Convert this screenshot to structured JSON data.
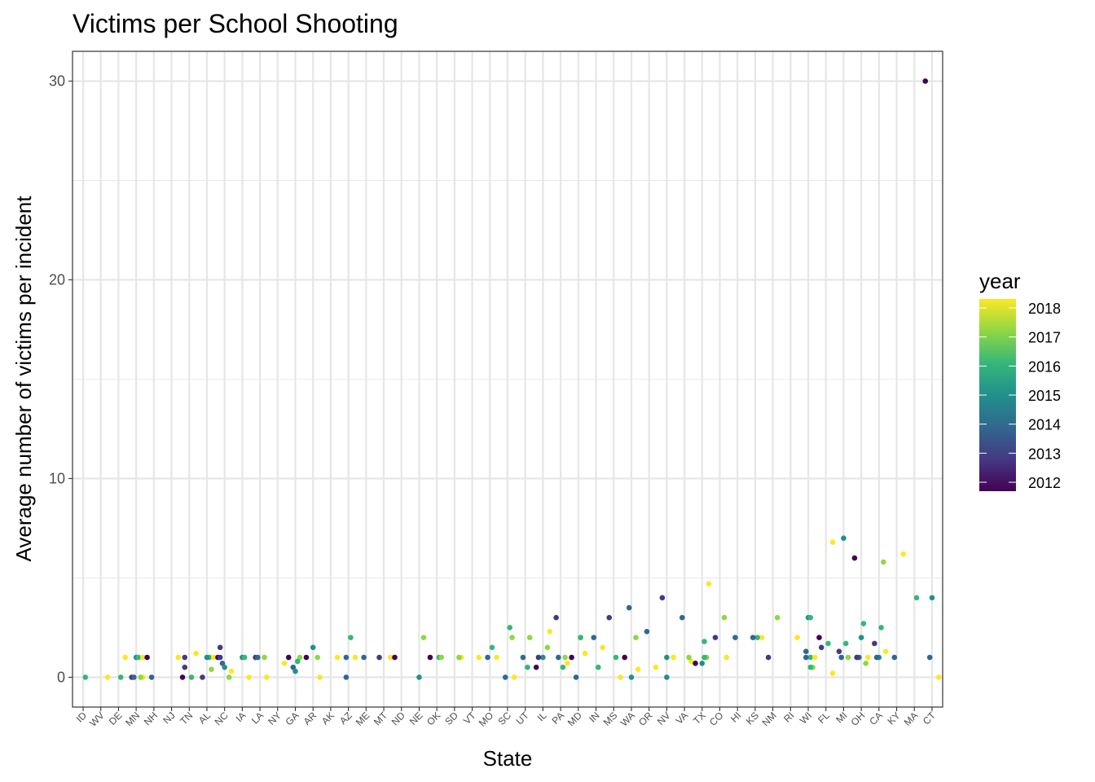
{
  "chart_data": {
    "type": "scatter",
    "title": "Victims per School Shooting",
    "xlabel": "State",
    "ylabel": "Average number of victims per incident",
    "ylim": [
      -1.5,
      31.5
    ],
    "yticks": [
      0,
      10,
      20,
      30
    ],
    "grid": true,
    "categories": [
      "ID",
      "WV",
      "DE",
      "MN",
      "NH",
      "NJ",
      "TN",
      "AL",
      "NC",
      "IA",
      "LA",
      "NY",
      "GA",
      "AR",
      "AK",
      "AZ",
      "ME",
      "MT",
      "ND",
      "NE",
      "OK",
      "SD",
      "VT",
      "MO",
      "SC",
      "UT",
      "IL",
      "PA",
      "MD",
      "IN",
      "MS",
      "WA",
      "OR",
      "NV",
      "VA",
      "TX",
      "CO",
      "HI",
      "KS",
      "NM",
      "RI",
      "WI",
      "FL",
      "MI",
      "OH",
      "CA",
      "KY",
      "MA",
      "CT"
    ],
    "color_scale": {
      "name": "year",
      "min": 2012,
      "max": 2018,
      "ticks": [
        2018,
        2017,
        2016,
        2015,
        2014,
        2013,
        2012
      ],
      "palette": [
        "#440154",
        "#443983",
        "#31688E",
        "#21908C",
        "#35B779",
        "#8FD744",
        "#FDE725"
      ]
    },
    "points": [
      {
        "state": "ID",
        "y": 0,
        "year": 2016
      },
      {
        "state": "WV",
        "y": 0,
        "year": 2018
      },
      {
        "state": "DE",
        "y": 1,
        "year": 2018
      },
      {
        "state": "DE",
        "y": 0,
        "year": 2016
      },
      {
        "state": "MN",
        "y": 0,
        "year": 2018
      },
      {
        "state": "MN",
        "y": 0,
        "year": 2017
      },
      {
        "state": "MN",
        "y": 1,
        "year": 2015
      },
      {
        "state": "MN",
        "y": 1,
        "year": 2016
      },
      {
        "state": "MN",
        "y": 0,
        "year": 2013
      },
      {
        "state": "MN",
        "y": 1,
        "year": 2018
      },
      {
        "state": "MN",
        "y": 0,
        "year": 2014
      },
      {
        "state": "NH",
        "y": 1,
        "year": 2012
      },
      {
        "state": "NH",
        "y": 0,
        "year": 2014
      },
      {
        "state": "NJ",
        "y": 1,
        "year": 2018
      },
      {
        "state": "TN",
        "y": 0,
        "year": 2012
      },
      {
        "state": "TN",
        "y": 0,
        "year": 2016
      },
      {
        "state": "TN",
        "y": 1.2,
        "year": 2018
      },
      {
        "state": "TN",
        "y": 1,
        "year": 2013
      },
      {
        "state": "TN",
        "y": 0.5,
        "year": 2013
      },
      {
        "state": "AL",
        "y": 1,
        "year": 2016
      },
      {
        "state": "AL",
        "y": 1,
        "year": 2015
      },
      {
        "state": "AL",
        "y": 0.4,
        "year": 2017
      },
      {
        "state": "AL",
        "y": 1,
        "year": 2018
      },
      {
        "state": "AL",
        "y": 0,
        "year": 2013
      },
      {
        "state": "NC",
        "y": 1.5,
        "year": 2013
      },
      {
        "state": "NC",
        "y": 0.7,
        "year": 2014
      },
      {
        "state": "NC",
        "y": 0.5,
        "year": 2015
      },
      {
        "state": "NC",
        "y": 0.3,
        "year": 2018
      },
      {
        "state": "NC",
        "y": 0,
        "year": 2017
      },
      {
        "state": "NC",
        "y": 1,
        "year": 2012
      },
      {
        "state": "NC",
        "y": 1,
        "year": 2013
      },
      {
        "state": "IA",
        "y": 0,
        "year": 2018
      },
      {
        "state": "IA",
        "y": 1,
        "year": 2015
      },
      {
        "state": "IA",
        "y": 1,
        "year": 2016
      },
      {
        "state": "LA",
        "y": 1,
        "year": 2013
      },
      {
        "state": "LA",
        "y": 1,
        "year": 2014
      },
      {
        "state": "LA",
        "y": 1,
        "year": 2017
      },
      {
        "state": "LA",
        "y": 0,
        "year": 2018
      },
      {
        "state": "NY",
        "y": 0.7,
        "year": 2018
      },
      {
        "state": "GA",
        "y": 1,
        "year": 2017
      },
      {
        "state": "GA",
        "y": 0.8,
        "year": 2016
      },
      {
        "state": "GA",
        "y": 0.5,
        "year": 2014
      },
      {
        "state": "GA",
        "y": 0.3,
        "year": 2015
      },
      {
        "state": "GA",
        "y": 1,
        "year": 2012
      },
      {
        "state": "AR",
        "y": 0,
        "year": 2018
      },
      {
        "state": "AR",
        "y": 1,
        "year": 2012
      },
      {
        "state": "AR",
        "y": 1.5,
        "year": 2015
      },
      {
        "state": "AR",
        "y": 1,
        "year": 2017
      },
      {
        "state": "AK",
        "y": 1,
        "year": 2018
      },
      {
        "state": "AZ",
        "y": 1,
        "year": 2014
      },
      {
        "state": "AZ",
        "y": 1,
        "year": 2018
      },
      {
        "state": "AZ",
        "y": 2,
        "year": 2016
      },
      {
        "state": "AZ",
        "y": 0,
        "year": 2014
      },
      {
        "state": "ME",
        "y": 1,
        "year": 2014
      },
      {
        "state": "MT",
        "y": 1,
        "year": 2013
      },
      {
        "state": "MT",
        "y": 1,
        "year": 2018
      },
      {
        "state": "ND",
        "y": 1,
        "year": 2012
      },
      {
        "state": "NE",
        "y": 2,
        "year": 2017
      },
      {
        "state": "NE",
        "y": 0,
        "year": 2015
      },
      {
        "state": "OK",
        "y": 1,
        "year": 2012
      },
      {
        "state": "OK",
        "y": 1,
        "year": 2016
      },
      {
        "state": "OK",
        "y": 1,
        "year": 2017
      },
      {
        "state": "SD",
        "y": 1,
        "year": 2018
      },
      {
        "state": "SD",
        "y": 1,
        "year": 2017
      },
      {
        "state": "VT",
        "y": 1,
        "year": 2018
      },
      {
        "state": "MO",
        "y": 1,
        "year": 2014
      },
      {
        "state": "MO",
        "y": 1.5,
        "year": 2016
      },
      {
        "state": "MO",
        "y": 1,
        "year": 2018
      },
      {
        "state": "SC",
        "y": 0,
        "year": 2014
      },
      {
        "state": "SC",
        "y": 0,
        "year": 2018
      },
      {
        "state": "SC",
        "y": 2,
        "year": 2017
      },
      {
        "state": "SC",
        "y": 2.5,
        "year": 2016
      },
      {
        "state": "UT",
        "y": 0.5,
        "year": 2016
      },
      {
        "state": "UT",
        "y": 2,
        "year": 2017
      },
      {
        "state": "UT",
        "y": 1,
        "year": 2014
      },
      {
        "state": "IL",
        "y": 1,
        "year": 2015
      },
      {
        "state": "IL",
        "y": 2.3,
        "year": 2018
      },
      {
        "state": "IL",
        "y": 1.5,
        "year": 2017
      },
      {
        "state": "IL",
        "y": 0.5,
        "year": 2012
      },
      {
        "state": "IL",
        "y": 1,
        "year": 2013
      },
      {
        "state": "PA",
        "y": 0.5,
        "year": 2016
      },
      {
        "state": "PA",
        "y": 1,
        "year": 2017
      },
      {
        "state": "PA",
        "y": 1,
        "year": 2014
      },
      {
        "state": "PA",
        "y": 3,
        "year": 2013
      },
      {
        "state": "PA",
        "y": 0.7,
        "year": 2018
      },
      {
        "state": "MD",
        "y": 0,
        "year": 2014
      },
      {
        "state": "MD",
        "y": 1,
        "year": 2012
      },
      {
        "state": "MD",
        "y": 2,
        "year": 2016
      },
      {
        "state": "MD",
        "y": 1.2,
        "year": 2018
      },
      {
        "state": "MD",
        "y": 2,
        "year": 2016
      },
      {
        "state": "IN",
        "y": 0.5,
        "year": 2016
      },
      {
        "state": "IN",
        "y": 1.5,
        "year": 2018
      },
      {
        "state": "IN",
        "y": 2,
        "year": 2014
      },
      {
        "state": "MS",
        "y": 3,
        "year": 2013
      },
      {
        "state": "MS",
        "y": 1,
        "year": 2016
      },
      {
        "state": "MS",
        "y": 0,
        "year": 2018
      },
      {
        "state": "WA",
        "y": 0,
        "year": 2015
      },
      {
        "state": "WA",
        "y": 0.4,
        "year": 2018
      },
      {
        "state": "WA",
        "y": 2,
        "year": 2017
      },
      {
        "state": "WA",
        "y": 3.5,
        "year": 2014
      },
      {
        "state": "WA",
        "y": 1,
        "year": 2012
      },
      {
        "state": "OR",
        "y": 2.3,
        "year": 2014
      },
      {
        "state": "OR",
        "y": 0.5,
        "year": 2018
      },
      {
        "state": "NV",
        "y": 0,
        "year": 2015
      },
      {
        "state": "NV",
        "y": 1,
        "year": 2018
      },
      {
        "state": "NV",
        "y": 4,
        "year": 2013
      },
      {
        "state": "NV",
        "y": 1,
        "year": 2015
      },
      {
        "state": "VA",
        "y": 3,
        "year": 2014
      },
      {
        "state": "VA",
        "y": 0.8,
        "year": 2018
      },
      {
        "state": "VA",
        "y": 1,
        "year": 2017
      },
      {
        "state": "TX",
        "y": 1.8,
        "year": 2016
      },
      {
        "state": "TX",
        "y": 4.7,
        "year": 2018
      },
      {
        "state": "TX",
        "y": 0.7,
        "year": 2012
      },
      {
        "state": "TX",
        "y": 1,
        "year": 2017
      },
      {
        "state": "TX",
        "y": 0.7,
        "year": 2015
      },
      {
        "state": "TX",
        "y": 1,
        "year": 2016
      },
      {
        "state": "CO",
        "y": 3,
        "year": 2017
      },
      {
        "state": "CO",
        "y": 2,
        "year": 2013
      },
      {
        "state": "CO",
        "y": 1,
        "year": 2018
      },
      {
        "state": "HI",
        "y": 2,
        "year": 2014
      },
      {
        "state": "KS",
        "y": 2,
        "year": 2018
      },
      {
        "state": "KS",
        "y": 2,
        "year": 2016
      },
      {
        "state": "KS",
        "y": 2,
        "year": 2014
      },
      {
        "state": "NM",
        "y": 1,
        "year": 2013
      },
      {
        "state": "NM",
        "y": 3,
        "year": 2017
      },
      {
        "state": "RI",
        "y": 2,
        "year": 2018
      },
      {
        "state": "WI",
        "y": 3,
        "year": 2015
      },
      {
        "state": "WI",
        "y": 3,
        "year": 2016
      },
      {
        "state": "WI",
        "y": 1,
        "year": 2016
      },
      {
        "state": "WI",
        "y": 1,
        "year": 2014
      },
      {
        "state": "WI",
        "y": 1,
        "year": 2018
      },
      {
        "state": "WI",
        "y": 0.5,
        "year": 2017
      },
      {
        "state": "WI",
        "y": 0.5,
        "year": 2016
      },
      {
        "state": "WI",
        "y": 1.3,
        "year": 2014
      },
      {
        "state": "FL",
        "y": 6.8,
        "year": 2018
      },
      {
        "state": "FL",
        "y": 2,
        "year": 2012
      },
      {
        "state": "FL",
        "y": 1.5,
        "year": 2013
      },
      {
        "state": "FL",
        "y": 1.7,
        "year": 2016
      },
      {
        "state": "FL",
        "y": 0.2,
        "year": 2018
      },
      {
        "state": "MI",
        "y": 7,
        "year": 2015
      },
      {
        "state": "MI",
        "y": 1,
        "year": 2017
      },
      {
        "state": "MI",
        "y": 1.7,
        "year": 2016
      },
      {
        "state": "MI",
        "y": 1,
        "year": 2014
      },
      {
        "state": "MI",
        "y": 1.3,
        "year": 2013
      },
      {
        "state": "OH",
        "y": 1,
        "year": 2014
      },
      {
        "state": "OH",
        "y": 2.7,
        "year": 2016
      },
      {
        "state": "OH",
        "y": 2,
        "year": 2015
      },
      {
        "state": "OH",
        "y": 1,
        "year": 2013
      },
      {
        "state": "OH",
        "y": 6,
        "year": 2012
      },
      {
        "state": "OH",
        "y": 1,
        "year": 2018
      },
      {
        "state": "OH",
        "y": 0.7,
        "year": 2017
      },
      {
        "state": "CA",
        "y": 1.7,
        "year": 2013
      },
      {
        "state": "CA",
        "y": 5.8,
        "year": 2017
      },
      {
        "state": "CA",
        "y": 2.5,
        "year": 2016
      },
      {
        "state": "CA",
        "y": 1,
        "year": 2015
      },
      {
        "state": "CA",
        "y": 1.3,
        "year": 2018
      },
      {
        "state": "CA",
        "y": 1,
        "year": 2014
      },
      {
        "state": "KY",
        "y": 6.2,
        "year": 2018
      },
      {
        "state": "KY",
        "y": 1,
        "year": 2014
      },
      {
        "state": "MA",
        "y": 4,
        "year": 2016
      },
      {
        "state": "CT",
        "y": 1,
        "year": 2014
      },
      {
        "state": "CT",
        "y": 0,
        "year": 2018
      },
      {
        "state": "CT",
        "y": 4,
        "year": 2015
      },
      {
        "state": "CT",
        "y": 30,
        "year": 2012
      }
    ]
  }
}
